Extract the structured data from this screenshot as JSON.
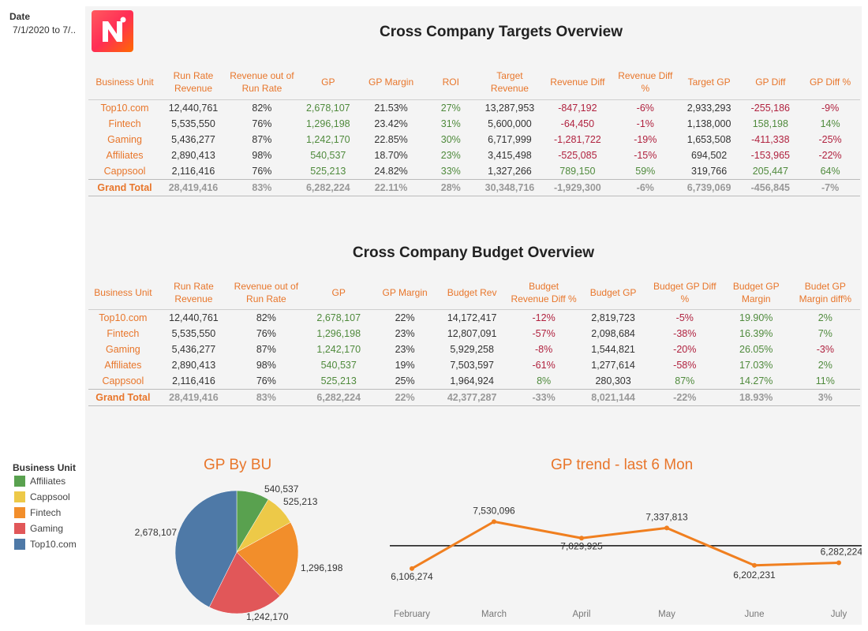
{
  "filter": {
    "title": "Date",
    "value": "7/1/2020 to 7/.."
  },
  "targets": {
    "title": "Cross Company Targets Overview",
    "columns": [
      "Business Unit",
      "Run Rate Revenue",
      "Revenue out of Run Rate",
      "GP",
      "GP Margin",
      "ROI",
      "Target Revenue",
      "Revenue Diff",
      "Revenue Diff %",
      "Target GP",
      "GP Diff",
      "GP Diff %"
    ],
    "rows": [
      {
        "bu": "Top10.com",
        "rrr": "12,440,761",
        "rorr": "82%",
        "gp": "2,678,107",
        "gpm": "21.53%",
        "roi": "27%",
        "trev": "13,287,953",
        "rdiff": "-847,192",
        "rdiffp": "-6%",
        "tgp": "2,933,293",
        "gpdiff": "-255,186",
        "gpdiffp": "-9%"
      },
      {
        "bu": "Fintech",
        "rrr": "5,535,550",
        "rorr": "76%",
        "gp": "1,296,198",
        "gpm": "23.42%",
        "roi": "31%",
        "trev": "5,600,000",
        "rdiff": "-64,450",
        "rdiffp": "-1%",
        "tgp": "1,138,000",
        "gpdiff": "158,198",
        "gpdiffp": "14%"
      },
      {
        "bu": "Gaming",
        "rrr": "5,436,277",
        "rorr": "87%",
        "gp": "1,242,170",
        "gpm": "22.85%",
        "roi": "30%",
        "trev": "6,717,999",
        "rdiff": "-1,281,722",
        "rdiffp": "-19%",
        "tgp": "1,653,508",
        "gpdiff": "-411,338",
        "gpdiffp": "-25%"
      },
      {
        "bu": "Affiliates",
        "rrr": "2,890,413",
        "rorr": "98%",
        "gp": "540,537",
        "gpm": "18.70%",
        "roi": "23%",
        "trev": "3,415,498",
        "rdiff": "-525,085",
        "rdiffp": "-15%",
        "tgp": "694,502",
        "gpdiff": "-153,965",
        "gpdiffp": "-22%"
      },
      {
        "bu": "Cappsool",
        "rrr": "2,116,416",
        "rorr": "76%",
        "gp": "525,213",
        "gpm": "24.82%",
        "roi": "33%",
        "trev": "1,327,266",
        "rdiff": "789,150",
        "rdiffp": "59%",
        "tgp": "319,766",
        "gpdiff": "205,447",
        "gpdiffp": "64%"
      }
    ],
    "total": {
      "bu": "Grand Total",
      "rrr": "28,419,416",
      "rorr": "83%",
      "gp": "6,282,224",
      "gpm": "22.11%",
      "roi": "28%",
      "trev": "30,348,716",
      "rdiff": "-1,929,300",
      "rdiffp": "-6%",
      "tgp": "6,739,069",
      "gpdiff": "-456,845",
      "gpdiffp": "-7%"
    }
  },
  "budget": {
    "title": "Cross Company Budget Overview",
    "columns": [
      "Business Unit",
      "Run Rate Revenue",
      "Revenue out of Run Rate",
      "GP",
      "GP Margin",
      "Budget Rev",
      "Budget Revenue Diff %",
      "Budget GP",
      "Budget GP Diff %",
      "Budget GP Margin",
      "Budet GP Margin diff%"
    ],
    "rows": [
      {
        "bu": "Top10.com",
        "rrr": "12,440,761",
        "rorr": "82%",
        "gp": "2,678,107",
        "gpm": "22%",
        "brev": "14,172,417",
        "brdp": "-12%",
        "bgp": "2,819,723",
        "bgpdp": "-5%",
        "bgpm": "19.90%",
        "bgpmd": "2%"
      },
      {
        "bu": "Fintech",
        "rrr": "5,535,550",
        "rorr": "76%",
        "gp": "1,296,198",
        "gpm": "23%",
        "brev": "12,807,091",
        "brdp": "-57%",
        "bgp": "2,098,684",
        "bgpdp": "-38%",
        "bgpm": "16.39%",
        "bgpmd": "7%"
      },
      {
        "bu": "Gaming",
        "rrr": "5,436,277",
        "rorr": "87%",
        "gp": "1,242,170",
        "gpm": "23%",
        "brev": "5,929,258",
        "brdp": "-8%",
        "bgp": "1,544,821",
        "bgpdp": "-20%",
        "bgpm": "26.05%",
        "bgpmd": "-3%"
      },
      {
        "bu": "Affiliates",
        "rrr": "2,890,413",
        "rorr": "98%",
        "gp": "540,537",
        "gpm": "19%",
        "brev": "7,503,597",
        "brdp": "-61%",
        "bgp": "1,277,614",
        "bgpdp": "-58%",
        "bgpm": "17.03%",
        "bgpmd": "2%"
      },
      {
        "bu": "Cappsool",
        "rrr": "2,116,416",
        "rorr": "76%",
        "gp": "525,213",
        "gpm": "25%",
        "brev": "1,964,924",
        "brdp": "8%",
        "bgp": "280,303",
        "bgpdp": "87%",
        "bgpm": "14.27%",
        "bgpmd": "11%"
      }
    ],
    "total": {
      "bu": "Grand Total",
      "rrr": "28,419,416",
      "rorr": "83%",
      "gp": "6,282,224",
      "gpm": "22%",
      "brev": "42,377,287",
      "brdp": "-33%",
      "bgp": "8,021,144",
      "bgpdp": "-22%",
      "bgpm": "18.93%",
      "bgpmd": "3%"
    }
  },
  "legend": {
    "title": "Business Unit",
    "items": [
      {
        "label": "Affiliates",
        "color": "#59a14f"
      },
      {
        "label": "Cappsool",
        "color": "#edc948"
      },
      {
        "label": "Fintech",
        "color": "#f28e2b"
      },
      {
        "label": "Gaming",
        "color": "#e15759"
      },
      {
        "label": "Top10.com",
        "color": "#4e79a7"
      }
    ]
  },
  "chart_data": [
    {
      "type": "pie",
      "title": "GP By BU",
      "categories": [
        "Affiliates",
        "Cappsool",
        "Fintech",
        "Gaming",
        "Top10.com"
      ],
      "values": [
        540537,
        525213,
        1296198,
        1242170,
        2678107
      ],
      "labels": [
        "540,537",
        "525,213",
        "1,296,198",
        "1,242,170",
        "2,678,107"
      ],
      "colors": [
        "#59a14f",
        "#edc948",
        "#f28e2b",
        "#e15759",
        "#4e79a7"
      ]
    },
    {
      "type": "line",
      "title": "GP trend - last 6 Mon",
      "categories": [
        "February",
        "March",
        "April",
        "May",
        "June",
        "July"
      ],
      "values": [
        6106274,
        7530096,
        7029925,
        7337813,
        6202231,
        6282224
      ],
      "labels": [
        "6,106,274",
        "7,530,096",
        "7,029,925",
        "7,337,813",
        "6,202,231",
        "6,282,224"
      ],
      "reference_line": 6800000,
      "color": "#f07f1f"
    }
  ]
}
